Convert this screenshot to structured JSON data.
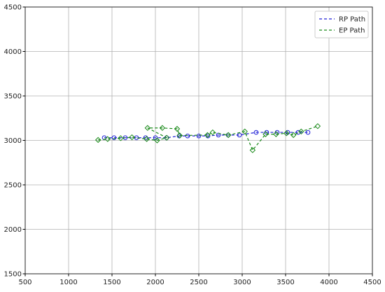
{
  "chart_data": {
    "type": "line",
    "series": [
      {
        "name": "RP Path",
        "color": "#1f1fd6",
        "marker": "circle",
        "x": [
          1411,
          1524,
          1653,
          1782,
          1887,
          2000,
          2129,
          2274,
          2371,
          2500,
          2605,
          2726,
          2839,
          2968,
          3161,
          3282,
          3403,
          3524,
          3645,
          3758
        ],
        "values": [
          3030,
          3030,
          3030,
          3030,
          3030,
          3030,
          3030,
          3050,
          3050,
          3050,
          3050,
          3060,
          3060,
          3060,
          3090,
          3090,
          3090,
          3090,
          3090,
          3090
        ]
      },
      {
        "name": "EP Path",
        "color": "#1a8a1a",
        "marker": "diamond",
        "x": [
          1340,
          1450,
          1600,
          1730,
          1900,
          2020,
          2130,
          1910,
          2080,
          2250,
          2280,
          2600,
          2660,
          2840,
          3030,
          3120,
          3270,
          3390,
          3510,
          3590,
          3680,
          3870
        ],
        "values": [
          3005,
          3015,
          3025,
          3035,
          3015,
          3000,
          3030,
          3140,
          3140,
          3130,
          3055,
          3060,
          3090,
          3060,
          3100,
          2890,
          3070,
          3070,
          3080,
          3060,
          3100,
          3160
        ]
      }
    ],
    "xlim": [
      500,
      4500
    ],
    "ylim": [
      1500,
      4500
    ],
    "xticks": [
      500,
      1000,
      1500,
      2000,
      2500,
      3000,
      3500,
      4000,
      4500
    ],
    "yticks": [
      1500,
      2000,
      2500,
      3000,
      3500,
      4000,
      4500
    ],
    "grid": true,
    "legend": "upper-right"
  }
}
